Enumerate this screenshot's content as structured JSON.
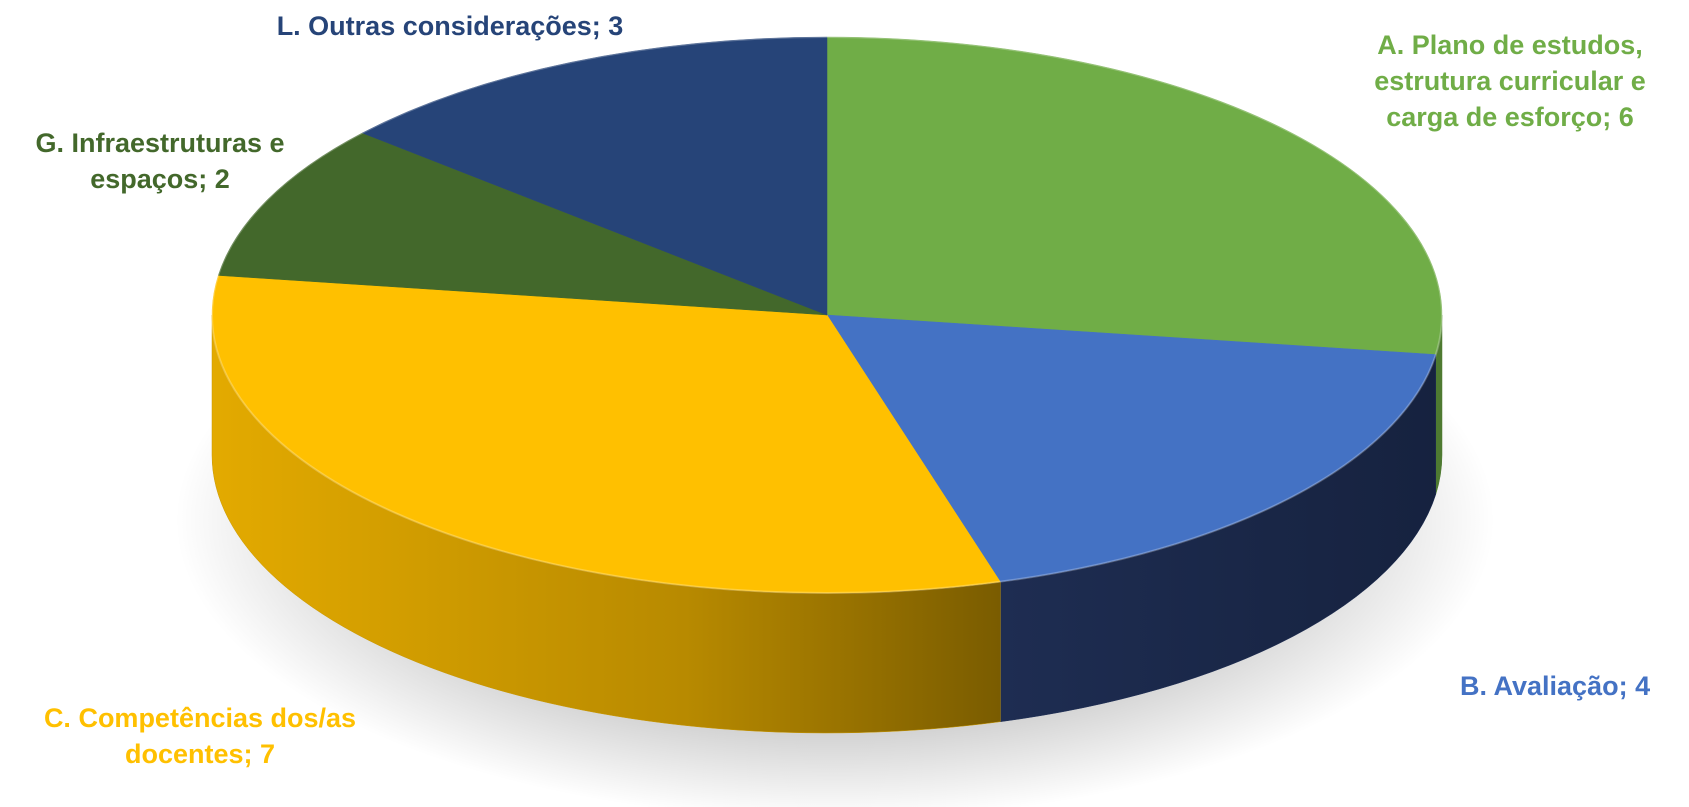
{
  "chart_data": {
    "type": "pie",
    "title": "",
    "slices": [
      {
        "name": "A. Plano de estudos, estrutura curricular e carga de esforço",
        "value": 6,
        "label": "A. Plano de estudos,\nestrutura curricular e\ncarga de esforço; 6",
        "color": "#70ad47",
        "side_color": "#4e7a31",
        "label_color": "#70ad47"
      },
      {
        "name": "B. Avaliação",
        "value": 4,
        "label": "B. Avaliação; 4",
        "color": "#4472c4",
        "side_color": "#1f2f55",
        "label_color": "#4472c4"
      },
      {
        "name": "C. Competências dos/as docentes",
        "value": 7,
        "label": "C. Competências dos/as\ndocentes; 7",
        "color": "#ffc000",
        "side_color": "#c99700",
        "label_color": "#ffc000"
      },
      {
        "name": "G. Infraestruturas e espaços",
        "value": 2,
        "label": "G. Infraestruturas e\nespaços; 2",
        "color": "#43682b",
        "side_color": "#2f4a1e",
        "label_color": "#43682b"
      },
      {
        "name": "L. Outras considerações",
        "value": 3,
        "label": "L. Outras considerações; 3",
        "color": "#264478",
        "side_color": "#1a2f55",
        "label_color": "#264478"
      }
    ],
    "start": "12 o'clock",
    "direction": "clockwise",
    "style": "3d"
  }
}
